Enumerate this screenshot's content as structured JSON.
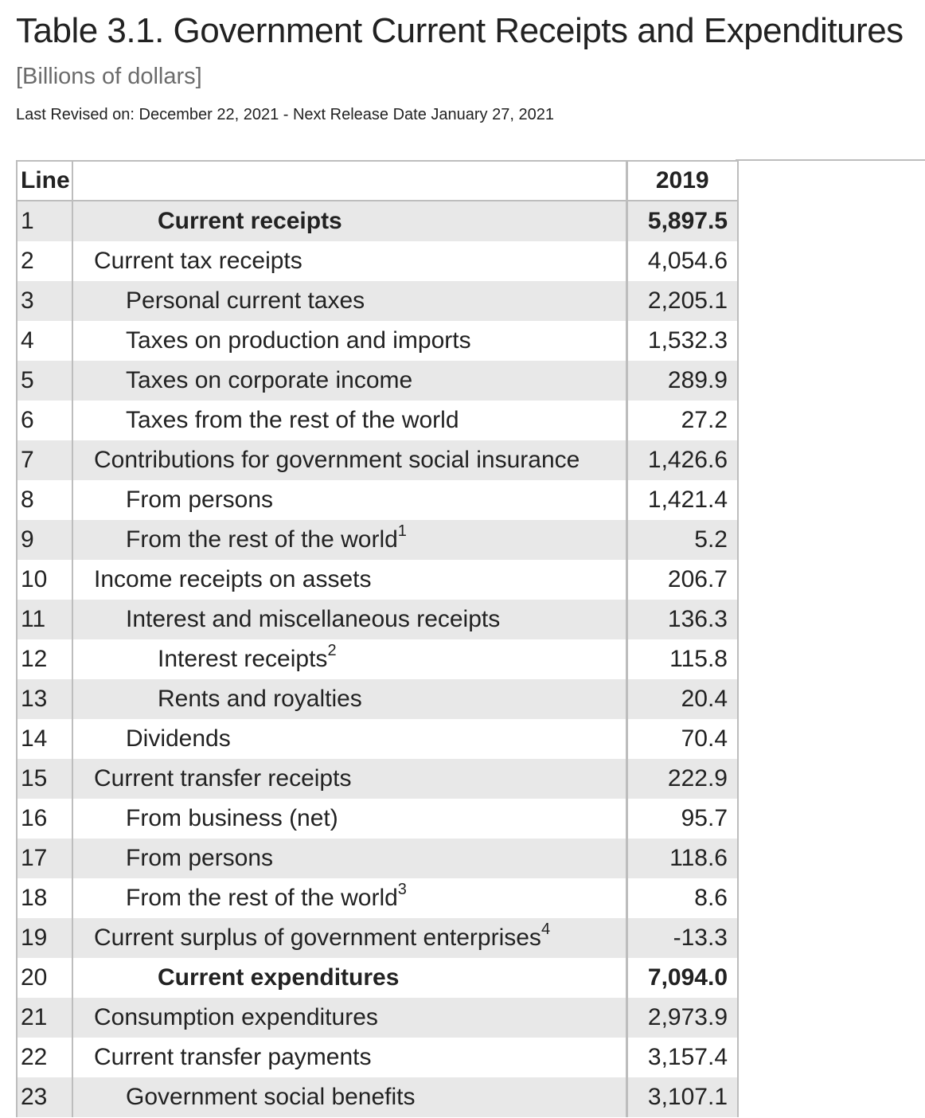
{
  "header": {
    "title": "Table 3.1. Government Current Receipts and Expenditures",
    "units": "[Billions of dollars]",
    "revised": "Last Revised on: December 22, 2021 - Next Release Date January 27, 2021"
  },
  "table": {
    "columns": {
      "line": "Line",
      "label": "",
      "year": "2019"
    },
    "rows": [
      {
        "line": "1",
        "label": "Current receipts",
        "value": "5,897.5",
        "indent": 0,
        "bold": true,
        "note": ""
      },
      {
        "line": "2",
        "label": "Current tax receipts",
        "value": "4,054.6",
        "indent": 1,
        "bold": false,
        "note": ""
      },
      {
        "line": "3",
        "label": "Personal current taxes",
        "value": "2,205.1",
        "indent": 2,
        "bold": false,
        "note": ""
      },
      {
        "line": "4",
        "label": "Taxes on production and imports",
        "value": "1,532.3",
        "indent": 2,
        "bold": false,
        "note": ""
      },
      {
        "line": "5",
        "label": "Taxes on corporate income",
        "value": "289.9",
        "indent": 2,
        "bold": false,
        "note": ""
      },
      {
        "line": "6",
        "label": "Taxes from the rest of the world",
        "value": "27.2",
        "indent": 2,
        "bold": false,
        "note": ""
      },
      {
        "line": "7",
        "label": "Contributions for government social insurance",
        "value": "1,426.6",
        "indent": 1,
        "bold": false,
        "note": ""
      },
      {
        "line": "8",
        "label": "From persons",
        "value": "1,421.4",
        "indent": 2,
        "bold": false,
        "note": ""
      },
      {
        "line": "9",
        "label": "From the rest of the world",
        "value": "5.2",
        "indent": 2,
        "bold": false,
        "note": "1"
      },
      {
        "line": "10",
        "label": "Income receipts on assets",
        "value": "206.7",
        "indent": 1,
        "bold": false,
        "note": ""
      },
      {
        "line": "11",
        "label": "Interest and miscellaneous receipts",
        "value": "136.3",
        "indent": 2,
        "bold": false,
        "note": ""
      },
      {
        "line": "12",
        "label": "Interest receipts",
        "value": "115.8",
        "indent": 3,
        "bold": false,
        "note": "2"
      },
      {
        "line": "13",
        "label": "Rents and royalties",
        "value": "20.4",
        "indent": 3,
        "bold": false,
        "note": ""
      },
      {
        "line": "14",
        "label": "Dividends",
        "value": "70.4",
        "indent": 2,
        "bold": false,
        "note": ""
      },
      {
        "line": "15",
        "label": "Current transfer receipts",
        "value": "222.9",
        "indent": 1,
        "bold": false,
        "note": ""
      },
      {
        "line": "16",
        "label": "From business (net)",
        "value": "95.7",
        "indent": 2,
        "bold": false,
        "note": ""
      },
      {
        "line": "17",
        "label": "From persons",
        "value": "118.6",
        "indent": 2,
        "bold": false,
        "note": ""
      },
      {
        "line": "18",
        "label": "From the rest of the world",
        "value": "8.6",
        "indent": 2,
        "bold": false,
        "note": "3"
      },
      {
        "line": "19",
        "label": "Current surplus of government enterprises",
        "value": "-13.3",
        "indent": 1,
        "bold": false,
        "note": "4"
      },
      {
        "line": "20",
        "label": "Current expenditures",
        "value": "7,094.0",
        "indent": 0,
        "bold": true,
        "note": ""
      },
      {
        "line": "21",
        "label": "Consumption expenditures",
        "value": "2,973.9",
        "indent": 1,
        "bold": false,
        "note": ""
      },
      {
        "line": "22",
        "label": "Current transfer payments",
        "value": "3,157.4",
        "indent": 1,
        "bold": false,
        "note": ""
      },
      {
        "line": "23",
        "label": "Government social benefits",
        "value": "3,107.1",
        "indent": 2,
        "bold": false,
        "note": ""
      }
    ]
  }
}
